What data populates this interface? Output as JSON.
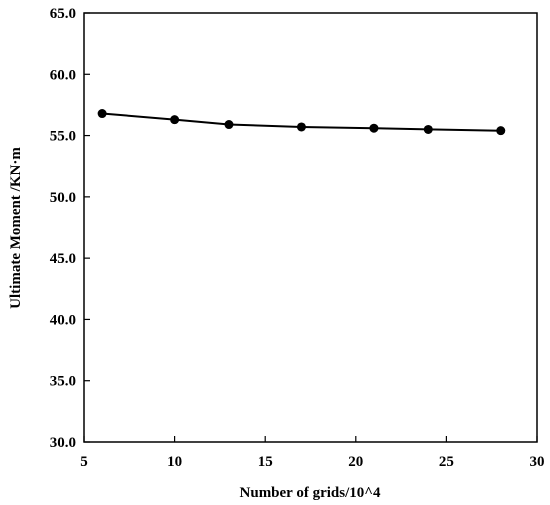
{
  "chart_data": {
    "type": "line",
    "title": "",
    "xlabel": "Number of grids/10^4",
    "ylabel": "Ultimate Moment /KN·m",
    "xlim": [
      5,
      30
    ],
    "ylim": [
      30.0,
      65.0
    ],
    "x_ticks": [
      "5",
      "10",
      "15",
      "20",
      "25",
      "30"
    ],
    "y_ticks": [
      "30.0",
      "35.0",
      "40.0",
      "45.0",
      "50.0",
      "55.0",
      "60.0",
      "65.0"
    ],
    "grid": false,
    "legend": "none",
    "series": [
      {
        "color": "#000000",
        "marker": "circle",
        "x": [
          6,
          10,
          13,
          17,
          21,
          24,
          28
        ],
        "y": [
          56.8,
          56.3,
          55.9,
          55.7,
          55.6,
          55.5,
          55.4
        ]
      }
    ]
  }
}
